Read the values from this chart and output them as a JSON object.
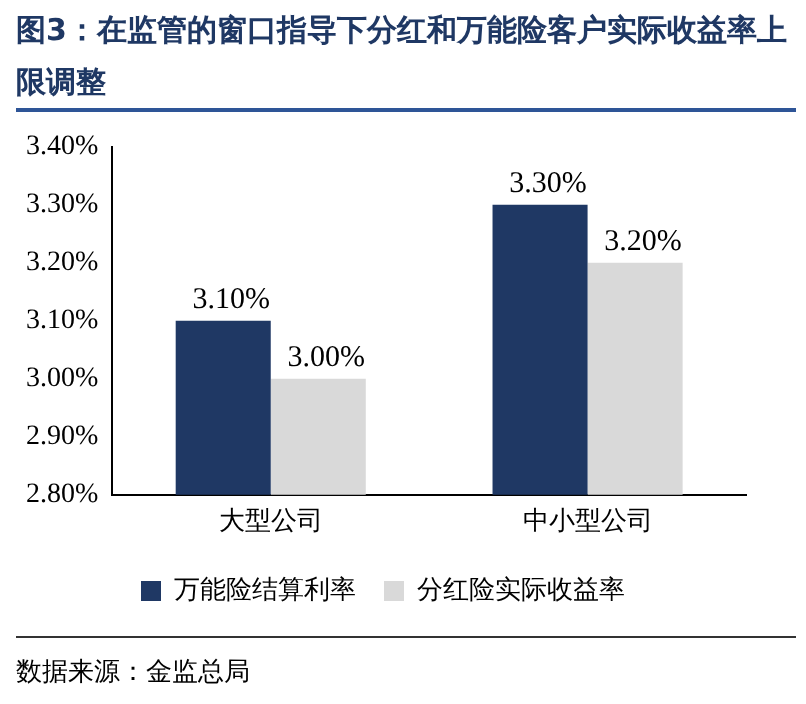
{
  "chart_data": {
    "type": "bar",
    "title": "图3：在监管的窗口指导下分红和万能险客户实际收益率上限调整",
    "categories": [
      "大型公司",
      "中小型公司"
    ],
    "series": [
      {
        "name": "万能险结算利率",
        "color": "#1f3864",
        "values": [
          3.1,
          3.3
        ],
        "value_labels": [
          "3.10%",
          "3.30%"
        ]
      },
      {
        "name": "分红险实际收益率",
        "color": "#d9d9d9",
        "values": [
          3.0,
          3.2
        ],
        "value_labels": [
          "3.00%",
          "3.20%"
        ]
      }
    ],
    "ylim": [
      2.8,
      3.4
    ],
    "yticks": [
      {
        "value": 2.8,
        "label": "2.80%"
      },
      {
        "value": 2.9,
        "label": "2.90%"
      },
      {
        "value": 3.0,
        "label": "3.00%"
      },
      {
        "value": 3.1,
        "label": "3.10%"
      },
      {
        "value": 3.2,
        "label": "3.20%"
      },
      {
        "value": 3.3,
        "label": "3.30%"
      },
      {
        "value": 3.4,
        "label": "3.40%"
      }
    ],
    "grid": false,
    "legend": "bottom",
    "annotations": [
      "数据来源：金监总局"
    ]
  }
}
